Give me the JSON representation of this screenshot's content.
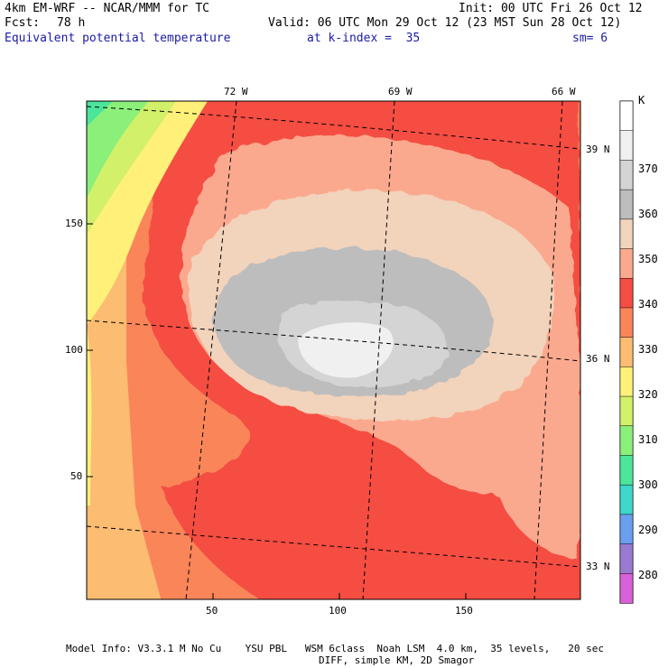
{
  "header": {
    "model": "4km EM-WRF -- NCAR/MMM for TC",
    "init": "Init: 00 UTC Fri 26 Oct 12",
    "fcst_label": "Fcst:",
    "fcst_value": "78 h",
    "valid": "Valid: 06 UTC Mon 29 Oct 12 (23 MST Sun 28 Oct 12)",
    "field": "Equivalent potential temperature",
    "level": "at k-index =  35",
    "smoothing": "sm= 6"
  },
  "footer": {
    "line1": "Model Info: V3.3.1 M No Cu    YSU PBL   WSM 6class  Noah LSM  4.0 km,  35 levels,   20 sec",
    "line2": "DIFF, simple KM, 2D Smagor"
  },
  "axes": {
    "y_ticks": [
      "150",
      "100",
      "50"
    ],
    "x_ticks": [
      "50",
      "100",
      "150"
    ],
    "lon_labels": [
      "72 W",
      "69 W",
      "66 W"
    ],
    "lat_labels": [
      "39 N",
      "36 N",
      "33 N"
    ]
  },
  "colorbar": {
    "unit": "K",
    "labels": [
      "370",
      "360",
      "350",
      "340",
      "330",
      "320",
      "310",
      "300",
      "290",
      "280"
    ],
    "colors": [
      "#ffffff",
      "#f0f0f0",
      "#d4d4d4",
      "#bdbdbd",
      "#f2d3bc",
      "#fba98e",
      "#f54d43",
      "#fa8559",
      "#fcbc71",
      "#fff079",
      "#d3f06a",
      "#8af07a",
      "#4ce69b",
      "#3fd6cb",
      "#6a9ff0",
      "#9a7ad0",
      "#d860d8"
    ]
  }
}
